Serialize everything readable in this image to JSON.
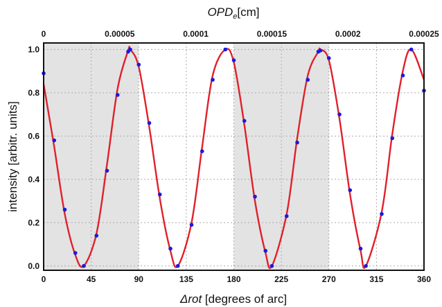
{
  "chart_data": {
    "type": "line",
    "title": "",
    "xlabel_italic": "Δrot",
    "xlabel_rest": " [degrees of arc]",
    "ylabel": "intensity [arbitr. units]",
    "top_xlabel_main": "OPD",
    "top_xlabel_sub": "e",
    "top_xlabel_unit": "[cm]",
    "xlim": [
      0,
      360
    ],
    "ylim": [
      -0.02,
      1.03
    ],
    "xticks": [
      0,
      45,
      90,
      135,
      180,
      225,
      270,
      315,
      360
    ],
    "yticks": [
      0.0,
      0.2,
      0.4,
      0.6,
      0.8,
      1.0
    ],
    "top_ticks": [
      {
        "label": "0",
        "x_deg": 0
      },
      {
        "label": "0.00005",
        "x_deg": 72
      },
      {
        "label": "0.0001",
        "x_deg": 144
      },
      {
        "label": "0.00015",
        "x_deg": 216
      },
      {
        "label": "0.0002",
        "x_deg": 288
      },
      {
        "label": "0.00025",
        "x_deg": 360
      }
    ],
    "grid": true,
    "shaded_bands_x": [
      [
        0,
        90
      ],
      [
        180,
        270
      ]
    ],
    "colors": {
      "fit": "#e0202a",
      "data": "#1a1adc",
      "shade": "#e3e3e3",
      "grid": "#aaaaaa"
    },
    "series": [
      {
        "kind": "line",
        "x": [
          0,
          10,
          20,
          30,
          38,
          50,
          60,
          70,
          80,
          82,
          90,
          100,
          110,
          120,
          127,
          140,
          150,
          160,
          172,
          180,
          190,
          200,
          210,
          216,
          230,
          240,
          250,
          260,
          262,
          270,
          280,
          290,
          300,
          305,
          320,
          330,
          340,
          348,
          360
        ],
        "y": [
          0.84,
          0.55,
          0.24,
          0.05,
          0.0,
          0.15,
          0.47,
          0.82,
          0.995,
          1.0,
          0.92,
          0.64,
          0.31,
          0.07,
          0.0,
          0.2,
          0.55,
          0.88,
          1.0,
          0.94,
          0.65,
          0.3,
          0.06,
          0.0,
          0.24,
          0.59,
          0.88,
          0.99,
          1.0,
          0.95,
          0.68,
          0.33,
          0.07,
          0.0,
          0.25,
          0.61,
          0.9,
          1.0,
          0.86
        ]
      },
      {
        "kind": "points",
        "x": [
          0,
          10,
          20,
          30,
          38,
          50,
          60,
          70,
          80,
          82,
          90,
          100,
          110,
          120,
          127,
          140,
          150,
          160,
          172,
          180,
          190,
          200,
          210,
          216,
          230,
          240,
          250,
          260,
          262,
          270,
          280,
          290,
          300,
          305,
          320,
          330,
          340,
          348,
          360
        ],
        "y": [
          0.89,
          0.58,
          0.26,
          0.06,
          0.0,
          0.14,
          0.44,
          0.79,
          0.99,
          1.0,
          0.93,
          0.66,
          0.33,
          0.08,
          0.0,
          0.19,
          0.53,
          0.86,
          1.0,
          0.95,
          0.67,
          0.32,
          0.07,
          0.0,
          0.23,
          0.57,
          0.86,
          0.99,
          0.995,
          0.96,
          0.7,
          0.35,
          0.08,
          0.0,
          0.24,
          0.59,
          0.88,
          1.0,
          0.81
        ]
      }
    ]
  }
}
